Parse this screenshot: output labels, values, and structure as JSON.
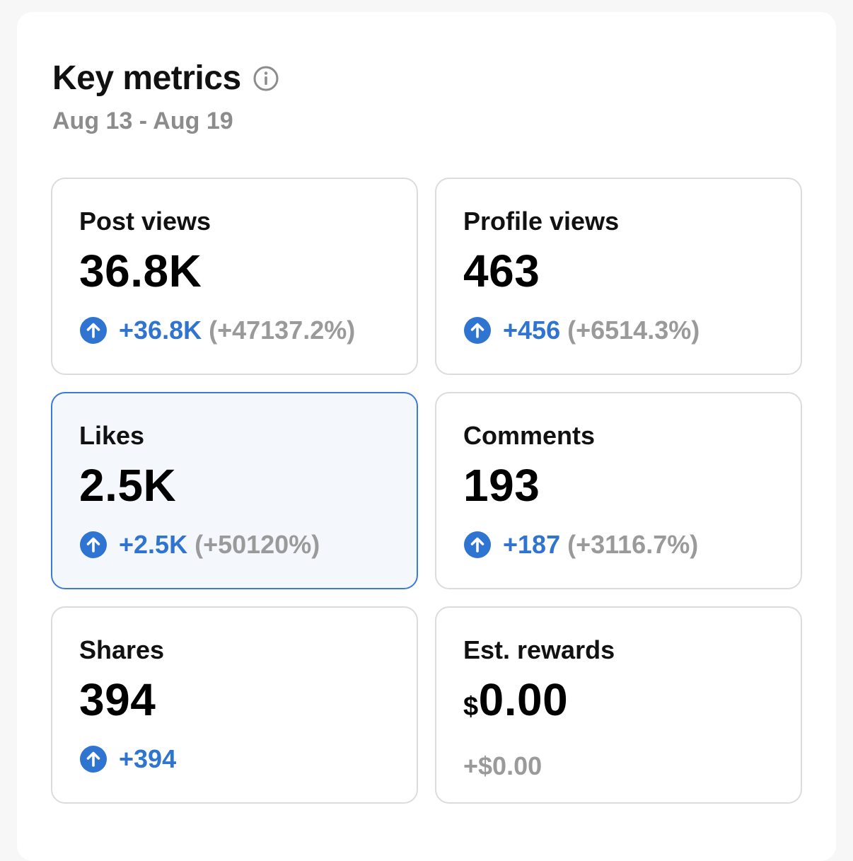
{
  "header": {
    "title": "Key metrics",
    "date_range": "Aug 13 - Aug 19",
    "info_icon": "info-icon"
  },
  "metrics": [
    {
      "label": "Post views",
      "value": "36.8K",
      "delta": "+36.8K",
      "pct": "(+47137.2%)",
      "trend_icon": "arrow-up-circle-icon"
    },
    {
      "label": "Profile views",
      "value": "463",
      "delta": "+456",
      "pct": "(+6514.3%)",
      "trend_icon": "arrow-up-circle-icon"
    },
    {
      "label": "Likes",
      "value": "2.5K",
      "delta": "+2.5K",
      "pct": "(+50120%)",
      "trend_icon": "arrow-up-circle-icon",
      "selected": true
    },
    {
      "label": "Comments",
      "value": "193",
      "delta": "+187",
      "pct": "(+3116.7%)",
      "trend_icon": "arrow-up-circle-icon"
    },
    {
      "label": "Shares",
      "value": "394",
      "delta": "+394",
      "trend_icon": "arrow-up-circle-icon"
    },
    {
      "label": "Est. rewards",
      "currency": "$",
      "value": "0.00",
      "delta": "+$0.00"
    }
  ],
  "colors": {
    "accent": "#2f74d0",
    "selected_border": "#3a7bd5",
    "selected_bg": "#f4f8fd",
    "muted_text": "#9a9a9a"
  }
}
